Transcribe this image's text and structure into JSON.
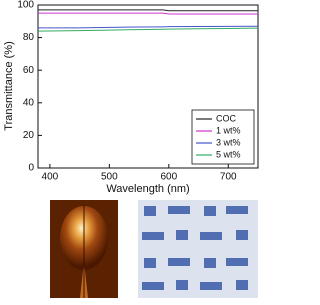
{
  "chart_data": {
    "type": "line",
    "x_label": "Wavelength (nm)",
    "y_label": "Transmittance (%)",
    "x": [
      380,
      450,
      500,
      550,
      590,
      600,
      650,
      700,
      750
    ],
    "series": [
      {
        "name": "COC",
        "color": "#222222",
        "values": [
          97,
          97,
          97,
          97,
          97,
          96.5,
          96.5,
          96.5,
          96.5
        ]
      },
      {
        "name": "1 wt%",
        "color": "#cc33cc",
        "values": [
          95,
          95,
          95,
          95,
          95,
          94.5,
          94.5,
          94.5,
          94.5
        ]
      },
      {
        "name": "3 wt%",
        "color": "#4455cc",
        "values": [
          86,
          86,
          86.3,
          86.5,
          86.6,
          86.7,
          86.8,
          86.9,
          87
        ]
      },
      {
        "name": "5 wt%",
        "color": "#33aa66",
        "values": [
          84,
          84.3,
          84.6,
          84.9,
          85.1,
          85.2,
          85.4,
          85.6,
          85.8
        ]
      }
    ],
    "xlim": [
      380,
      750
    ],
    "xticks": [
      400,
      500,
      600,
      700
    ],
    "ylim": [
      0,
      100
    ],
    "yticks": [
      0,
      20,
      40,
      60,
      80,
      100
    ],
    "legend": "lower right",
    "grid": false
  }
}
